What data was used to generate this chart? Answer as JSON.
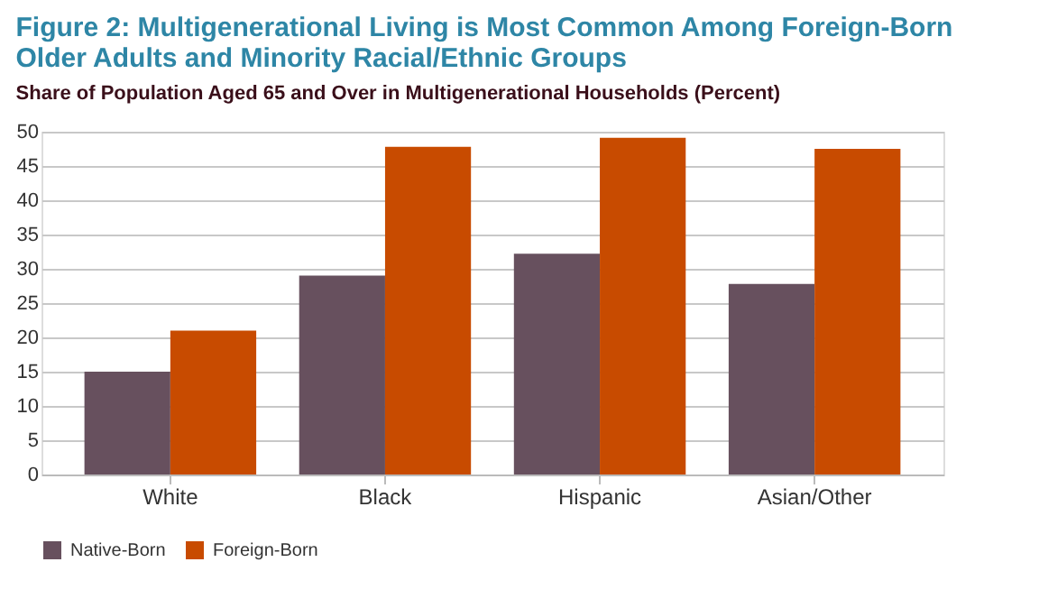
{
  "chart_data": {
    "type": "bar",
    "title": [
      "Figure 2: Multigenerational Living is Most Common Among Foreign-Born",
      "Older Adults and Minority Racial/Ethnic Groups"
    ],
    "subtitle": "Share of Population Aged 65 and Over in Multigenerational Households (Percent)",
    "categories": [
      "White",
      "Black",
      "Hispanic",
      "Asian/Other"
    ],
    "series": [
      {
        "name": "Native-Born",
        "color": "#67505e",
        "values": [
          15,
          29,
          32.2,
          27.8
        ]
      },
      {
        "name": "Foreign-Born",
        "color": "#c84b00",
        "values": [
          21,
          47.8,
          49.1,
          47.5
        ]
      }
    ],
    "ylim": [
      0,
      50
    ],
    "yticks": [
      0,
      5,
      10,
      15,
      20,
      25,
      30,
      35,
      40,
      45,
      50
    ],
    "grid": "y",
    "legend": "bottom left"
  }
}
